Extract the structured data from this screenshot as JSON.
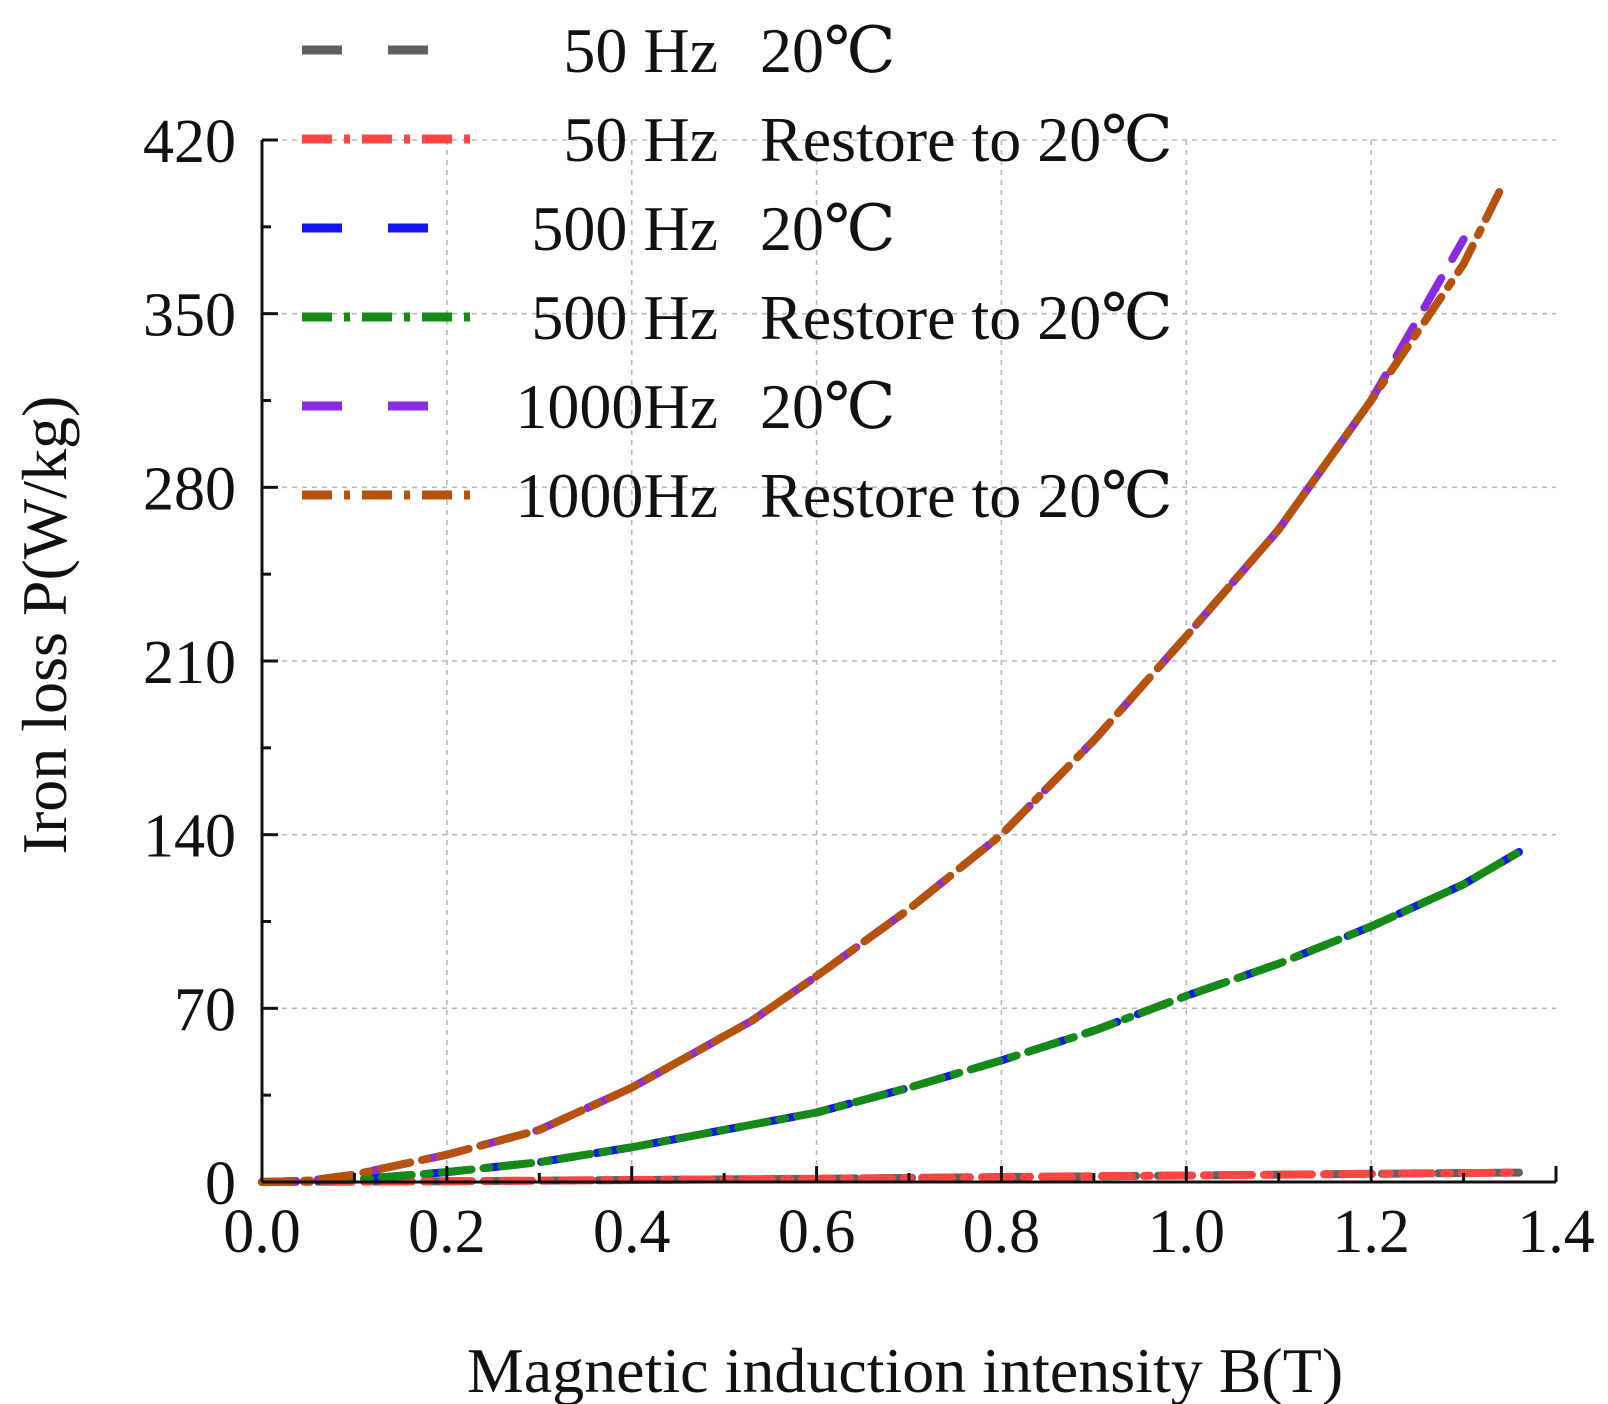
{
  "chart_data": {
    "type": "line",
    "xlabel": "Magnetic induction intensity B(T)",
    "ylabel": "Iron loss P(W/kg)",
    "xlim": [
      0,
      1.4
    ],
    "ylim": [
      0,
      420
    ],
    "xticks": [
      "0.0",
      "0.2",
      "0.4",
      "0.6",
      "0.8",
      "1.0",
      "1.2",
      "1.4"
    ],
    "yticks": [
      "0",
      "70",
      "140",
      "210",
      "280",
      "350",
      "420"
    ],
    "grid": true,
    "legend_position": "top-left",
    "series": [
      {
        "name": "50  Hz  20℃",
        "freq_label": "50  Hz",
        "cond_label": "20℃",
        "color": "#606060",
        "style": "dash",
        "x": [
          0,
          0.2,
          0.4,
          0.6,
          0.8,
          1.0,
          1.2,
          1.36
        ],
        "y": [
          0,
          0.3,
          0.8,
          1.3,
          2.0,
          2.6,
          3.3,
          3.8
        ]
      },
      {
        "name": "50  Hz  Restore to 20℃",
        "freq_label": "50  Hz",
        "cond_label": "Restore to 20℃",
        "color": "#ff4444",
        "style": "dashdot",
        "x": [
          0,
          0.2,
          0.4,
          0.6,
          0.8,
          1.0,
          1.2,
          1.36
        ],
        "y": [
          0,
          0.3,
          0.8,
          1.3,
          2.0,
          2.6,
          3.3,
          3.8
        ]
      },
      {
        "name": "500 Hz  20℃",
        "freq_label": "500 Hz",
        "cond_label": "20℃",
        "color": "#1515ee",
        "style": "dash",
        "x": [
          0,
          0.1,
          0.2,
          0.3,
          0.4,
          0.5,
          0.6,
          0.7,
          0.8,
          0.9,
          1.0,
          1.1,
          1.2,
          1.3,
          1.36
        ],
        "y": [
          0,
          1,
          4,
          8,
          14,
          21,
          28,
          38,
          49,
          61,
          75,
          88,
          103,
          120,
          133
        ]
      },
      {
        "name": "500 Hz  Restore to 20℃",
        "freq_label": "500 Hz",
        "cond_label": "Restore to 20℃",
        "color": "#168a16",
        "style": "dashdot",
        "x": [
          0,
          0.1,
          0.2,
          0.3,
          0.4,
          0.5,
          0.6,
          0.7,
          0.8,
          0.9,
          1.0,
          1.1,
          1.2,
          1.3,
          1.36
        ],
        "y": [
          0,
          1,
          4,
          8,
          14,
          21,
          28,
          38,
          49,
          61,
          75,
          88,
          103,
          120,
          133
        ]
      },
      {
        "name": "1000Hz  20℃",
        "freq_label": "1000Hz",
        "cond_label": "20℃",
        "color": "#8a2be2",
        "style": "dash",
        "x": [
          0,
          0.05,
          0.1,
          0.15,
          0.2,
          0.3,
          0.4,
          0.53,
          0.6,
          0.7,
          0.8,
          0.9,
          1.0,
          1.1,
          1.2,
          1.3
        ],
        "y": [
          0,
          0.5,
          3,
          7,
          11,
          21,
          38,
          65,
          83,
          110,
          140,
          178,
          220,
          263,
          315,
          380
        ]
      },
      {
        "name": "1000Hz  Restore to 20℃",
        "freq_label": "1000Hz",
        "cond_label": "Restore to 20℃",
        "color": "#b5520e",
        "style": "dashdot",
        "x": [
          0,
          0.05,
          0.1,
          0.15,
          0.2,
          0.3,
          0.4,
          0.53,
          0.6,
          0.7,
          0.8,
          0.9,
          1.0,
          1.1,
          1.2,
          1.3,
          1.34
        ],
        "y": [
          0,
          0.5,
          3,
          7,
          11,
          21,
          38,
          65,
          83,
          110,
          140,
          178,
          220,
          263,
          315,
          370,
          400
        ]
      }
    ]
  }
}
